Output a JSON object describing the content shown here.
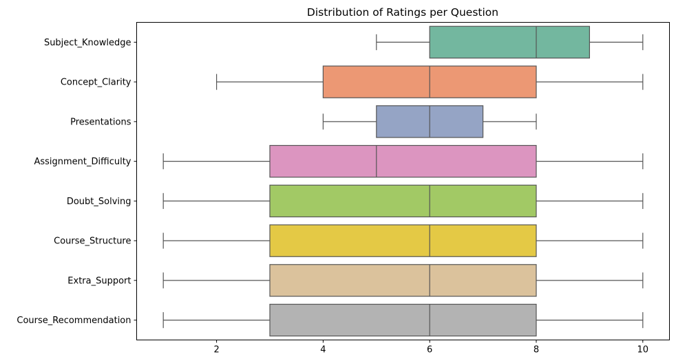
{
  "chart_data": {
    "type": "box",
    "orientation": "horizontal",
    "title": "Distribution of Ratings per Question",
    "xlabel": "",
    "ylabel": "",
    "xlim": [
      0.5,
      10.5
    ],
    "xticks": [
      2,
      4,
      6,
      8,
      10
    ],
    "grid": false,
    "categories": [
      "Subject_Knowledge",
      "Concept_Clarity",
      "Presentations",
      "Assignment_Difficulty",
      "Doubt_Solving",
      "Course_Structure",
      "Extra_Support",
      "Course_Recommendation"
    ],
    "boxes": [
      {
        "category": "Subject_Knowledge",
        "whisker_low": 5,
        "q1": 6,
        "median": 8,
        "q3": 9,
        "whisker_high": 10,
        "color": "#73b79f"
      },
      {
        "category": "Concept_Clarity",
        "whisker_low": 2,
        "q1": 4,
        "median": 6,
        "q3": 8,
        "whisker_high": 10,
        "color": "#ec9874"
      },
      {
        "category": "Presentations",
        "whisker_low": 4,
        "q1": 5,
        "median": 6,
        "q3": 7,
        "whisker_high": 8,
        "color": "#95a4c5"
      },
      {
        "category": "Assignment_Difficulty",
        "whisker_low": 1,
        "q1": 3,
        "median": 5,
        "q3": 8,
        "whisker_high": 10,
        "color": "#dc95c0"
      },
      {
        "category": "Doubt_Solving",
        "whisker_low": 1,
        "q1": 3,
        "median": 6,
        "q3": 8,
        "whisker_high": 10,
        "color": "#a2c965"
      },
      {
        "category": "Course_Structure",
        "whisker_low": 1,
        "q1": 3,
        "median": 6,
        "q3": 8,
        "whisker_high": 10,
        "color": "#e4c945"
      },
      {
        "category": "Extra_Support",
        "whisker_low": 1,
        "q1": 3,
        "median": 6,
        "q3": 8,
        "whisker_high": 10,
        "color": "#dbc29c"
      },
      {
        "category": "Course_Recommendation",
        "whisker_low": 1,
        "q1": 3,
        "median": 6,
        "q3": 8,
        "whisker_high": 10,
        "color": "#b3b3b3"
      }
    ]
  }
}
